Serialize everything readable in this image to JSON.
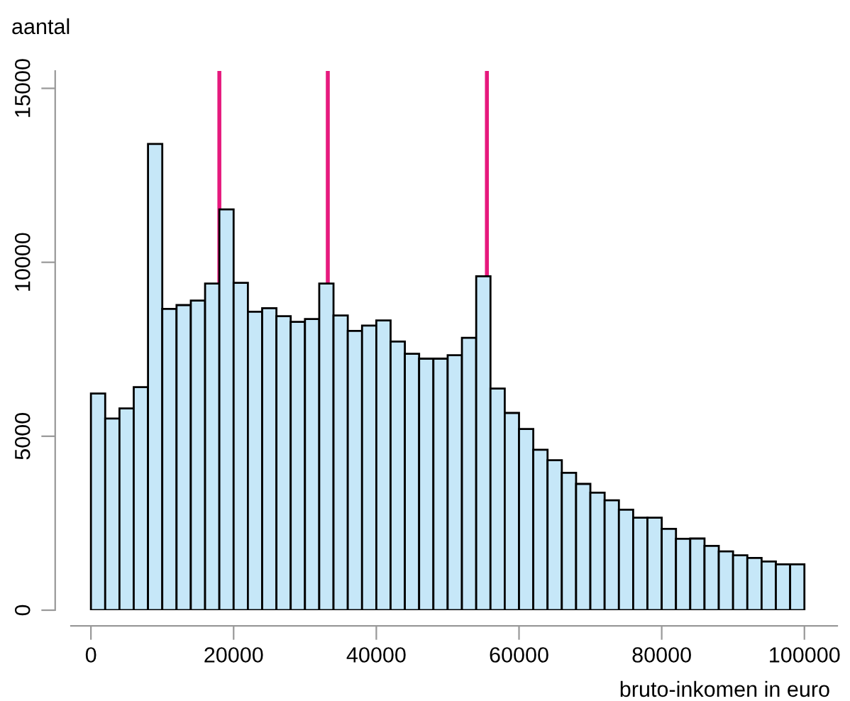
{
  "chart_data": {
    "type": "histogram",
    "xlabel": "bruto-inkomen in euro",
    "ylabel": "aantal",
    "bins": [
      0,
      2000,
      4000,
      6000,
      8000,
      10000,
      12000,
      14000,
      16000,
      18000,
      20000,
      22000,
      24000,
      26000,
      28000,
      30000,
      32000,
      34000,
      36000,
      38000,
      40000,
      42000,
      44000,
      46000,
      48000,
      50000,
      52000,
      54000,
      56000,
      58000,
      60000,
      62000,
      64000,
      66000,
      68000,
      70000,
      72000,
      74000,
      76000,
      78000,
      80000,
      82000,
      84000,
      86000,
      88000,
      90000,
      92000,
      94000,
      96000,
      98000,
      100000
    ],
    "values": [
      6230,
      5510,
      5800,
      6410,
      13400,
      8660,
      8770,
      8900,
      9390,
      11520,
      9410,
      8580,
      8680,
      8450,
      8290,
      8370,
      9390,
      8470,
      8030,
      8180,
      8330,
      7720,
      7370,
      7230,
      7230,
      7330,
      7830,
      9600,
      6370,
      5670,
      5210,
      4610,
      4310,
      3950,
      3630,
      3380,
      3160,
      2890,
      2660,
      2660,
      2340,
      2050,
      2060,
      1850,
      1690,
      1580,
      1500,
      1400,
      1320,
      1320
    ],
    "color": "#c6e7f8",
    "xlim": [
      -2800,
      104600
    ],
    "ylim": [
      0,
      15500
    ],
    "xticks": [
      0,
      20000,
      40000,
      60000,
      80000,
      100000
    ],
    "yticks": [
      0,
      5000,
      10000,
      15000
    ],
    "ref_lines": [
      {
        "axis": "x",
        "value": 18000,
        "color": "#e6197d"
      },
      {
        "axis": "x",
        "value": 33200,
        "color": "#e6197d"
      },
      {
        "axis": "x",
        "value": 55500,
        "color": "#e6197d"
      }
    ],
    "grid": false
  }
}
